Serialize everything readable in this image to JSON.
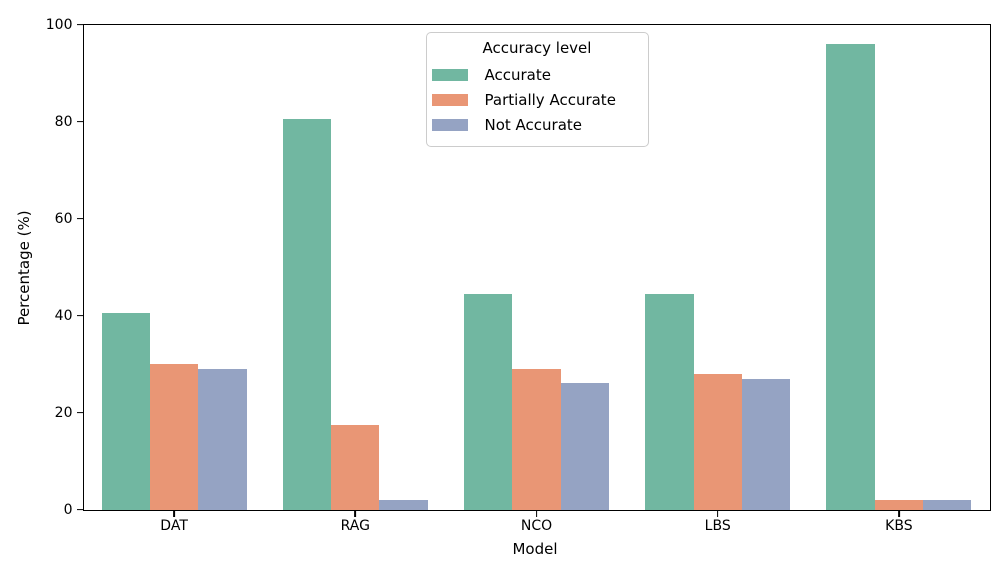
{
  "chart_data": {
    "type": "bar",
    "categories": [
      "DAT",
      "RAG",
      "NCO",
      "LBS",
      "KBS"
    ],
    "series": [
      {
        "name": "Accurate",
        "color": "#71b7a1",
        "values": [
          40.5,
          80.5,
          44.5,
          44.5,
          96
        ]
      },
      {
        "name": "Partially Accurate",
        "color": "#e99675",
        "values": [
          30,
          17.5,
          29,
          28,
          2
        ]
      },
      {
        "name": "Not Accurate",
        "color": "#95a3c3",
        "values": [
          29,
          2,
          26,
          27,
          2
        ]
      }
    ],
    "title": "",
    "xlabel": "Model",
    "ylabel": "Percentage (%)",
    "ylim": [
      0,
      100
    ],
    "yticks": [
      0,
      20,
      40,
      60,
      80,
      100
    ],
    "grid": false,
    "bar_group_width_frac": 0.8,
    "legend": {
      "title": "Accuracy level",
      "position": "upper center"
    }
  },
  "colors": {
    "axis": "#000000",
    "background": "#ffffff",
    "legend_border": "#cccccc",
    "text": "#000000"
  }
}
